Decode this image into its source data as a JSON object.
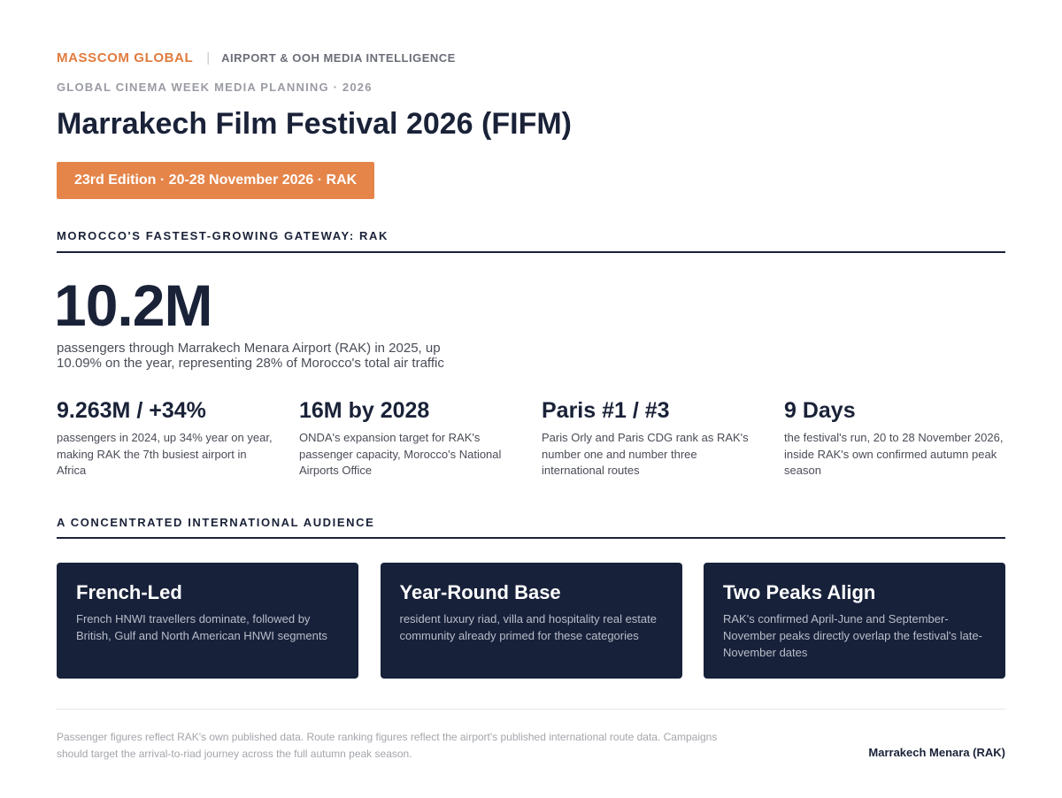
{
  "header": {
    "brand": "MASSCOM GLOBAL",
    "separator": "|",
    "tagline": "AIRPORT & OOH MEDIA INTELLIGENCE",
    "eyebrow": "GLOBAL CINEMA WEEK MEDIA PLANNING · 2026",
    "title": "Marrakech Film Festival 2026 (FIFM)",
    "badge": "23rd Edition · 20-28 November 2026 · RAK",
    "colors": {
      "accent": "#e5854a",
      "brand": "#e07b3e",
      "navy": "#1a2238",
      "card": "#17213a"
    }
  },
  "gateway": {
    "heading": "MOROCCO'S FASTEST-GROWING GATEWAY: RAK",
    "hero_value": "10.2M",
    "hero_caption": "passengers through Marrakech Menara Airport (RAK) in 2025, up 10.09% on the year, representing 28% of Morocco's total air traffic",
    "stats": [
      {
        "value": "9.263M / +34%",
        "desc": "passengers in 2024, up 34% year on year, making RAK the 7th busiest airport in Africa"
      },
      {
        "value": "16M by 2028",
        "desc": "ONDA's expansion target for RAK's passenger capacity, Morocco's National Airports Office"
      },
      {
        "value": "Paris #1 / #3",
        "desc": "Paris Orly and Paris CDG rank as RAK's number one and number three international routes"
      },
      {
        "value": "9 Days",
        "desc": "the festival's run, 20 to 28 November 2026, inside RAK's own confirmed autumn peak season"
      }
    ]
  },
  "audience": {
    "heading": "A CONCENTRATED INTERNATIONAL AUDIENCE",
    "cards": [
      {
        "title": "French-Led",
        "desc": "French HNWI travellers dominate, followed by British, Gulf and North American HNWI segments"
      },
      {
        "title": "Year-Round Base",
        "desc": "resident luxury riad, villa and hospitality real estate community already primed for these categories"
      },
      {
        "title": "Two Peaks Align",
        "desc": "RAK's confirmed April-June and September-November peaks directly overlap the festival's late-November dates"
      }
    ]
  },
  "footer": {
    "note": "Passenger figures reflect RAK's own published data. Route ranking figures reflect the airport's published international route data. Campaigns should target the arrival-to-riad journey across the full autumn peak season.",
    "source": "Marrakech Menara (RAK)"
  }
}
